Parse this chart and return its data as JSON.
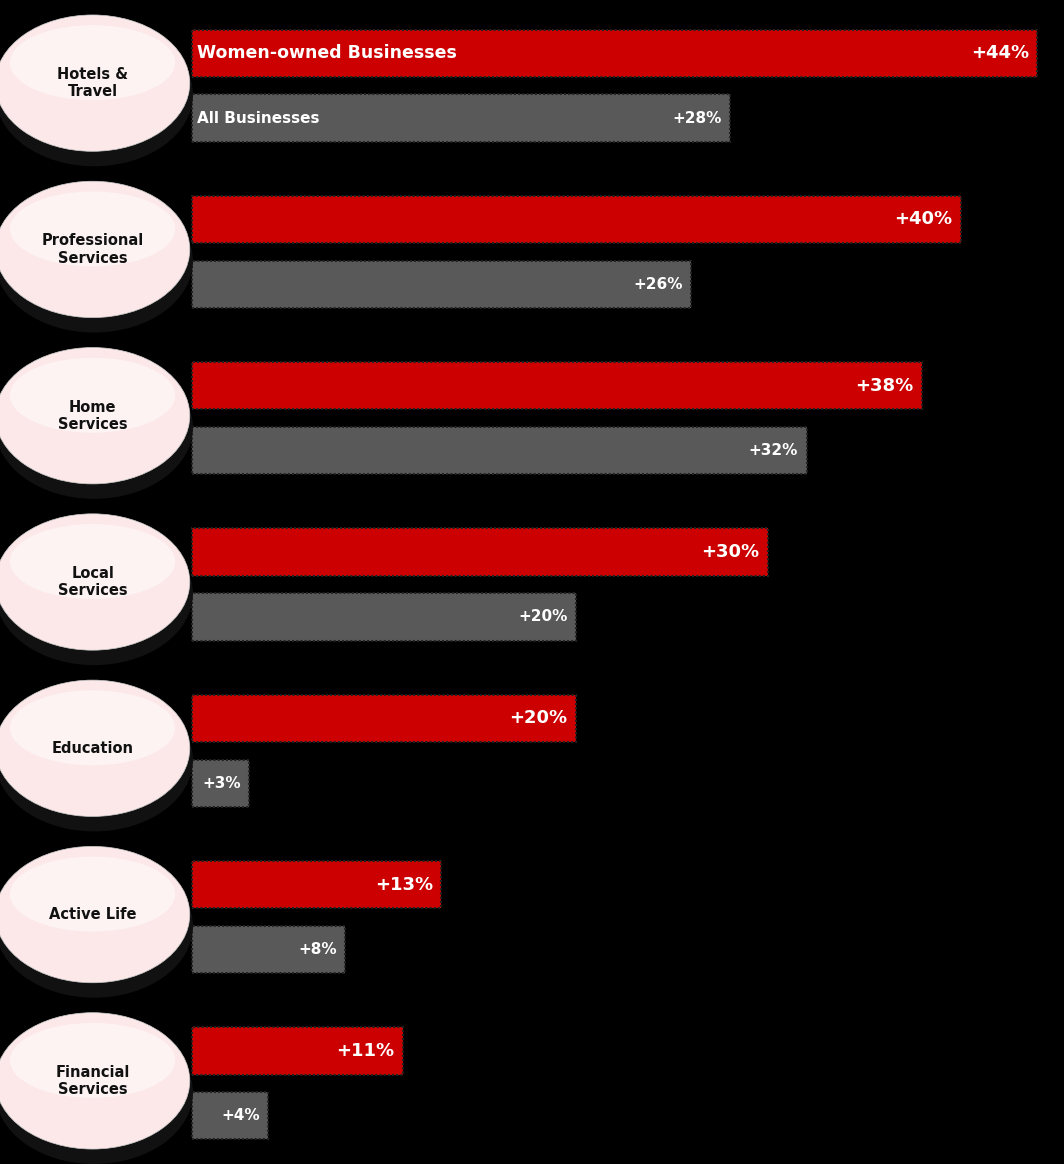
{
  "categories": [
    "Hotels &\nTravel",
    "Professional\nServices",
    "Home\nServices",
    "Local\nServices",
    "Education",
    "Active Life",
    "Financial\nServices"
  ],
  "women_values": [
    44,
    40,
    38,
    30,
    20,
    13,
    11
  ],
  "all_values": [
    28,
    26,
    32,
    20,
    3,
    8,
    4
  ],
  "max_value": 44,
  "red_color": "#CC0000",
  "gray_color": "#595959",
  "background_color": "#000000",
  "oval_fill_top": "#ffffff",
  "oval_fill_bottom": "#f0d0d0",
  "oval_stroke": "#111111",
  "first_label_women": "Women-owned Businesses",
  "first_label_all": "All Businesses",
  "fig_width": 10.64,
  "fig_height": 11.64,
  "n_categories": 7
}
